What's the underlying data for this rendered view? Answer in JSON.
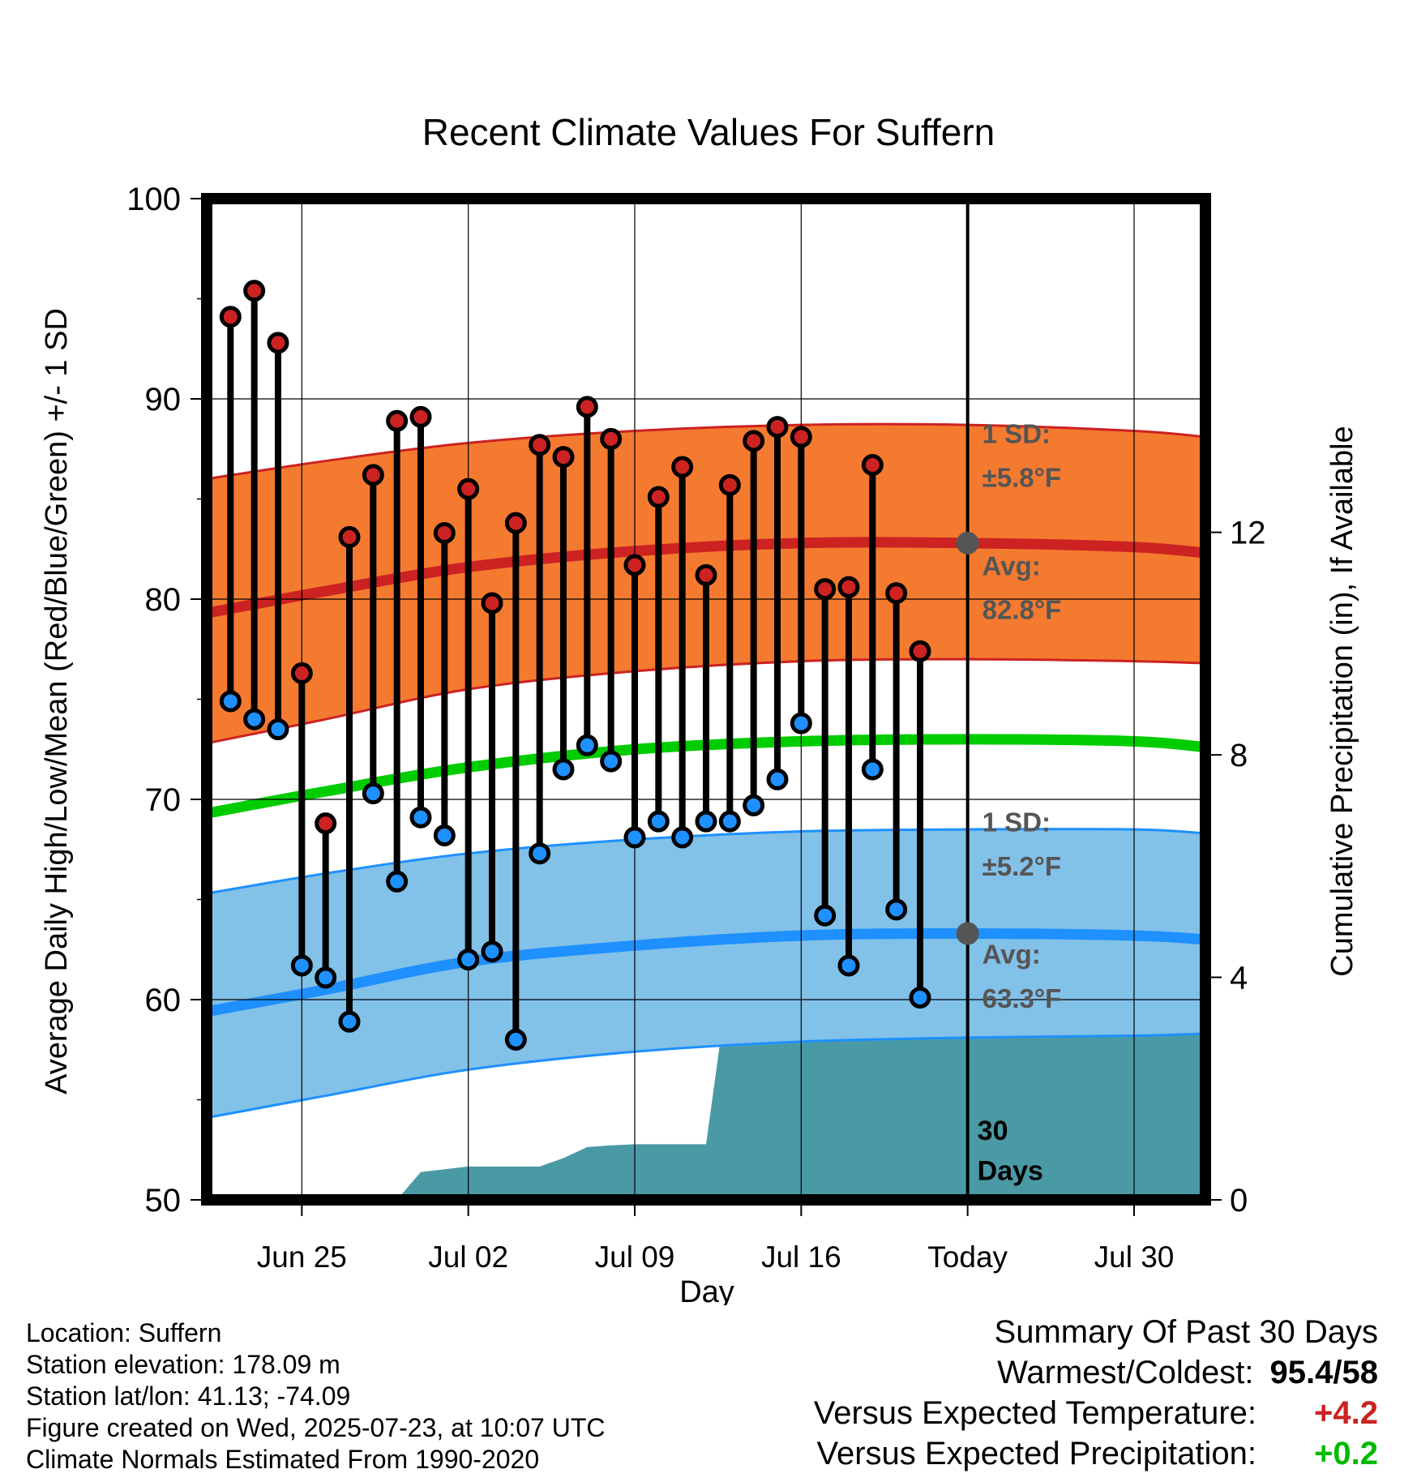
{
  "chart_data": {
    "type": "line",
    "title": "Recent Climate Values For Suffern",
    "xlabel": "Day",
    "ylabel": "Average Daily High/Low/Mean (Red/Blue/Green) +/- 1 SD",
    "y2label": "Cumulative Precipitation (in), If Available",
    "ylim": [
      50,
      100
    ],
    "y2lim": [
      0,
      18
    ],
    "yticks": [
      "50",
      "60",
      "70",
      "80",
      "90",
      "100"
    ],
    "y2ticks": [
      "0",
      "4",
      "8",
      "12"
    ],
    "xticks": [
      "Jun 25",
      "Jul 02",
      "Jul 09",
      "Jul 16",
      "Today",
      "Jul 30"
    ],
    "x_range": [
      "2025-06-21",
      "2025-08-02"
    ],
    "today": "2025-07-23",
    "today_label": "Today",
    "window_label": "30 Days",
    "grid": true,
    "normal_days": [
      "2025-06-21",
      "2025-06-26",
      "2025-07-02",
      "2025-07-09",
      "2025-07-16",
      "2025-07-23",
      "2025-07-30",
      "2025-08-02"
    ],
    "normal_high": [
      79.3,
      80.4,
      81.6,
      82.4,
      82.8,
      82.8,
      82.6,
      82.3
    ],
    "normal_high_upper": [
      86.0,
      86.9,
      87.8,
      88.4,
      88.7,
      88.7,
      88.4,
      88.1
    ],
    "normal_high_lower": [
      72.8,
      74.0,
      75.5,
      76.4,
      76.9,
      77.0,
      76.9,
      76.8
    ],
    "normal_mean": [
      69.3,
      70.4,
      71.6,
      72.5,
      72.9,
      73.0,
      72.9,
      72.6
    ],
    "normal_low": [
      59.4,
      60.5,
      61.9,
      62.7,
      63.2,
      63.3,
      63.2,
      63.0
    ],
    "normal_low_upper": [
      65.3,
      66.3,
      67.3,
      68.0,
      68.4,
      68.5,
      68.5,
      68.3
    ],
    "normal_low_lower": [
      54.1,
      55.2,
      56.5,
      57.4,
      57.9,
      58.1,
      58.2,
      58.3
    ],
    "series": [
      {
        "name": "High",
        "color": "#cc2222",
        "days": [
          "2025-06-22",
          "2025-06-23",
          "2025-06-24",
          "2025-06-25",
          "2025-06-26",
          "2025-06-27",
          "2025-06-28",
          "2025-06-29",
          "2025-06-30",
          "2025-07-01",
          "2025-07-02",
          "2025-07-03",
          "2025-07-04",
          "2025-07-05",
          "2025-07-06",
          "2025-07-07",
          "2025-07-08",
          "2025-07-09",
          "2025-07-10",
          "2025-07-11",
          "2025-07-12",
          "2025-07-13",
          "2025-07-14",
          "2025-07-15",
          "2025-07-16",
          "2025-07-17",
          "2025-07-18",
          "2025-07-19",
          "2025-07-20",
          "2025-07-21",
          "2025-07-22"
        ],
        "values": [
          94.1,
          95.4,
          92.8,
          76.3,
          68.8,
          83.1,
          86.2,
          88.9,
          89.1,
          83.3,
          85.5,
          79.8,
          83.8,
          87.7,
          87.1,
          89.6,
          88.0,
          81.7,
          85.1,
          86.6,
          81.2,
          85.7,
          87.9,
          88.6,
          88.1,
          80.5,
          80.6,
          86.7,
          80.3,
          77.4,
          null
        ]
      },
      {
        "name": "Low",
        "color": "#1e90ff",
        "days": [
          "2025-06-22",
          "2025-06-23",
          "2025-06-24",
          "2025-06-25",
          "2025-06-26",
          "2025-06-27",
          "2025-06-28",
          "2025-06-29",
          "2025-06-30",
          "2025-07-01",
          "2025-07-02",
          "2025-07-03",
          "2025-07-04",
          "2025-07-05",
          "2025-07-06",
          "2025-07-07",
          "2025-07-08",
          "2025-07-09",
          "2025-07-10",
          "2025-07-11",
          "2025-07-12",
          "2025-07-13",
          "2025-07-14",
          "2025-07-15",
          "2025-07-16",
          "2025-07-17",
          "2025-07-18",
          "2025-07-19",
          "2025-07-20",
          "2025-07-21",
          "2025-07-22"
        ],
        "values": [
          74.9,
          74.0,
          73.5,
          61.7,
          61.1,
          58.9,
          70.3,
          65.9,
          69.1,
          68.2,
          62.0,
          62.4,
          58.0,
          67.3,
          71.5,
          72.7,
          71.9,
          68.1,
          68.9,
          68.1,
          68.9,
          68.9,
          69.7,
          71.0,
          73.8,
          64.2,
          61.7,
          71.5,
          64.5,
          60.1,
          null
        ]
      },
      {
        "name": "Cumulative Precipitation",
        "color": "#4a9aa5",
        "days": [
          "2025-06-29",
          "2025-06-30",
          "2025-07-01",
          "2025-07-02",
          "2025-07-03",
          "2025-07-04",
          "2025-07-05",
          "2025-07-06",
          "2025-07-07",
          "2025-07-08",
          "2025-07-09",
          "2025-07-10",
          "2025-07-11",
          "2025-07-12",
          "2025-07-13",
          "2025-07-14",
          "2025-07-15",
          "2025-07-16",
          "2025-07-17",
          "2025-07-18",
          "2025-07-19",
          "2025-07-20",
          "2025-08-02"
        ],
        "values": [
          0.0,
          0.5,
          0.55,
          0.6,
          0.6,
          0.6,
          0.6,
          0.75,
          0.95,
          0.98,
          1.0,
          1.0,
          1.0,
          1.0,
          4.1,
          4.1,
          4.1,
          4.1,
          4.1,
          4.12,
          4.2,
          4.2,
          4.2
        ]
      }
    ],
    "annotations": {
      "high_sd_label": "1 SD:",
      "high_sd_value": "±5.8°F",
      "high_avg_label": "Avg:",
      "high_avg_value": "82.8°F",
      "low_sd_label": "1 SD:",
      "low_sd_value": "±5.2°F",
      "low_avg_label": "Avg:",
      "low_avg_value": "63.3°F",
      "high_avg_point": 82.8,
      "low_avg_point": 63.3
    },
    "colors": {
      "high_band": "#f47a30",
      "high_line": "#cc2222",
      "low_band": "#82c1e8",
      "low_line": "#1e90ff",
      "mean_line": "#00cc00",
      "precip": "#4a9aa5",
      "annotation": "#555555"
    }
  },
  "info": {
    "location": "Location: Suffern",
    "elevation": "Station elevation: 178.09 m",
    "latlon": "Station lat/lon: 41.13; -74.09",
    "created": "Figure created on Wed, 2025-07-23, at 10:07 UTC",
    "normals": "Climate Normals Estimated From 1990-2020"
  },
  "summary": {
    "title": "Summary Of Past 30 Days",
    "warm_cold_label": "Warmest/Coldest:",
    "warm_value": "95.4",
    "cold_value": "58",
    "temp_label": "Versus Expected Temperature:",
    "temp_value": "+4.2",
    "temp_color": "#cc2222",
    "precip_label": "Versus Expected Precipitation:",
    "precip_value": "+0.2",
    "precip_color": "#00bb00"
  }
}
